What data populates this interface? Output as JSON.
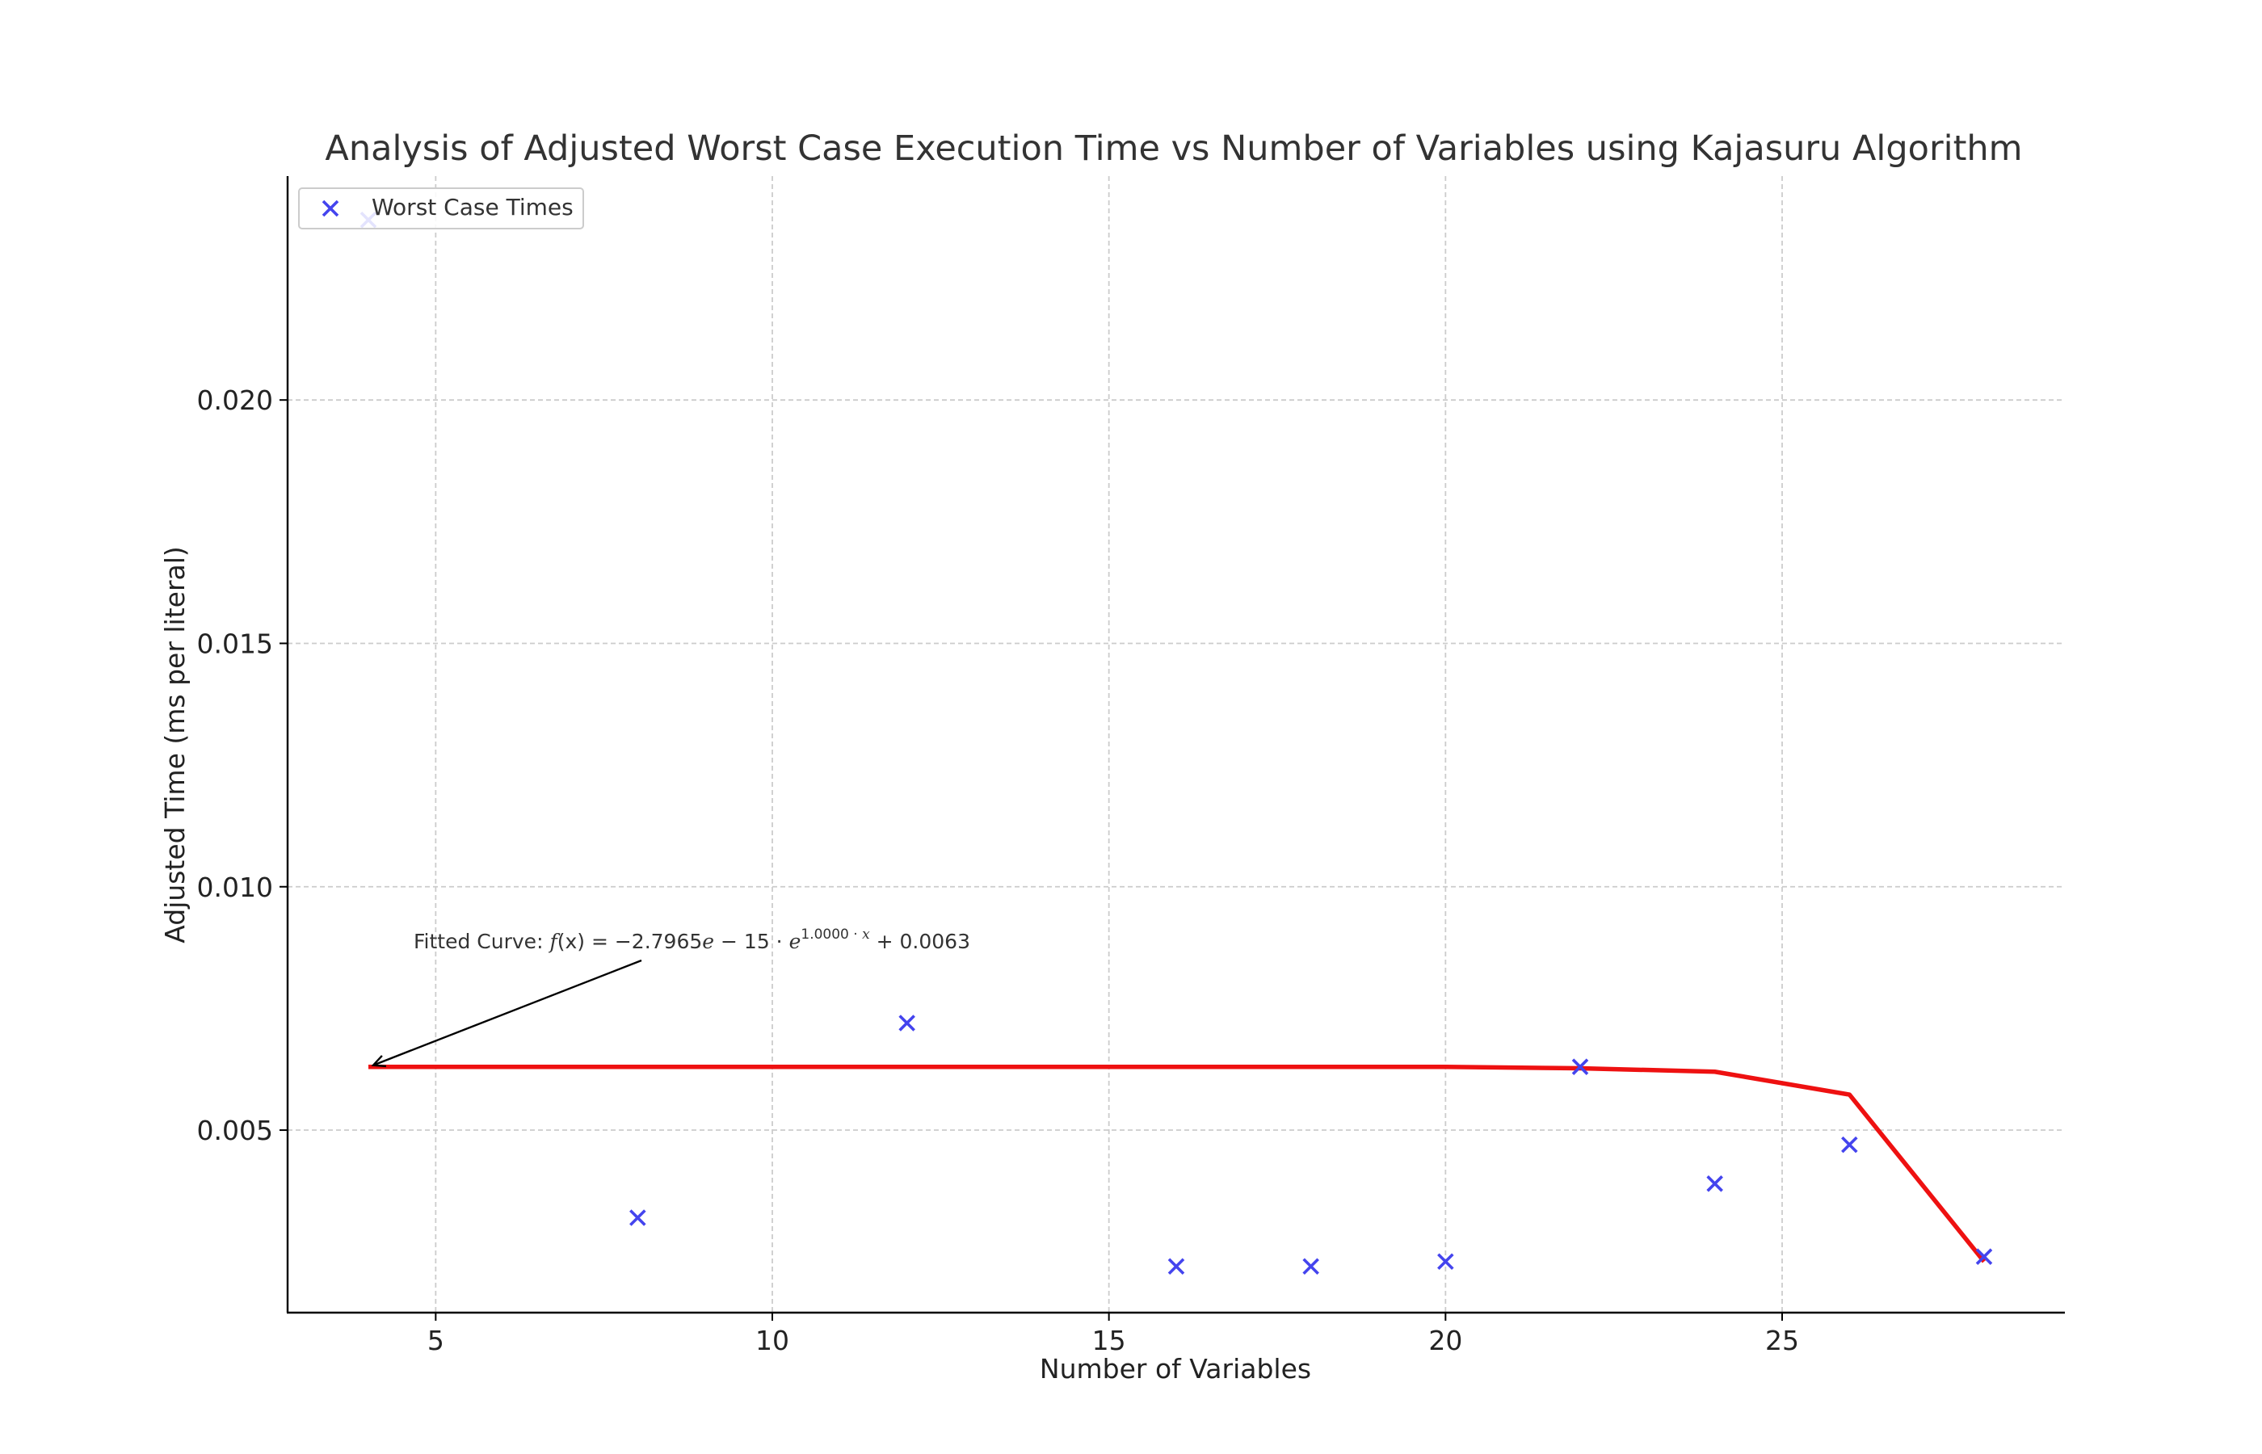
{
  "chart_data": {
    "type": "scatter",
    "title": "Analysis of Adjusted Worst Case Execution Time vs Number of Variables using Kajasuru Algorithm",
    "xlabel": "Number of Variables",
    "ylabel": "Adjusted Time (ms per literal)",
    "xlim": [
      2.8,
      29.2
    ],
    "ylim": [
      0.00125,
      0.0246
    ],
    "xticks": [
      5,
      10,
      15,
      20,
      25
    ],
    "yticks": [
      0.005,
      0.01,
      0.015,
      0.02
    ],
    "xtick_labels": [
      "5",
      "10",
      "15",
      "20",
      "25"
    ],
    "ytick_labels": [
      "0.005",
      "0.010",
      "0.015",
      "0.020"
    ],
    "grid": true,
    "legend_position": "top-left",
    "series": [
      {
        "name": "Worst Case Times",
        "kind": "scatter",
        "marker": "x",
        "color": "#4444ee",
        "x": [
          4,
          8,
          12,
          16,
          18,
          20,
          22,
          24,
          26,
          28
        ],
        "y": [
          0.0237,
          0.0032,
          0.0072,
          0.0022,
          0.0022,
          0.0023,
          0.0063,
          0.0039,
          0.0047,
          0.0024
        ]
      },
      {
        "name": "",
        "kind": "line",
        "color": "#ee1111",
        "x": [
          4,
          8,
          12,
          16,
          18,
          20,
          22,
          24,
          26,
          28
        ],
        "y": [
          0.0063,
          0.0063,
          0.0063,
          0.0063,
          0.0063,
          0.0063,
          0.00627,
          0.0062,
          0.00573,
          0.0023
        ]
      }
    ],
    "annotation": {
      "prefix": "Fitted Curve: ",
      "fx": "f",
      "paren_x": "(x) = −2.7965",
      "e1": "e",
      "minus15": " − 15 · ",
      "e2": "e",
      "exponent_num": "1.0000 · ",
      "exponent_x": "x",
      "suffix": " + 0.0063",
      "arrow_target": [
        4,
        0.0063
      ]
    }
  }
}
